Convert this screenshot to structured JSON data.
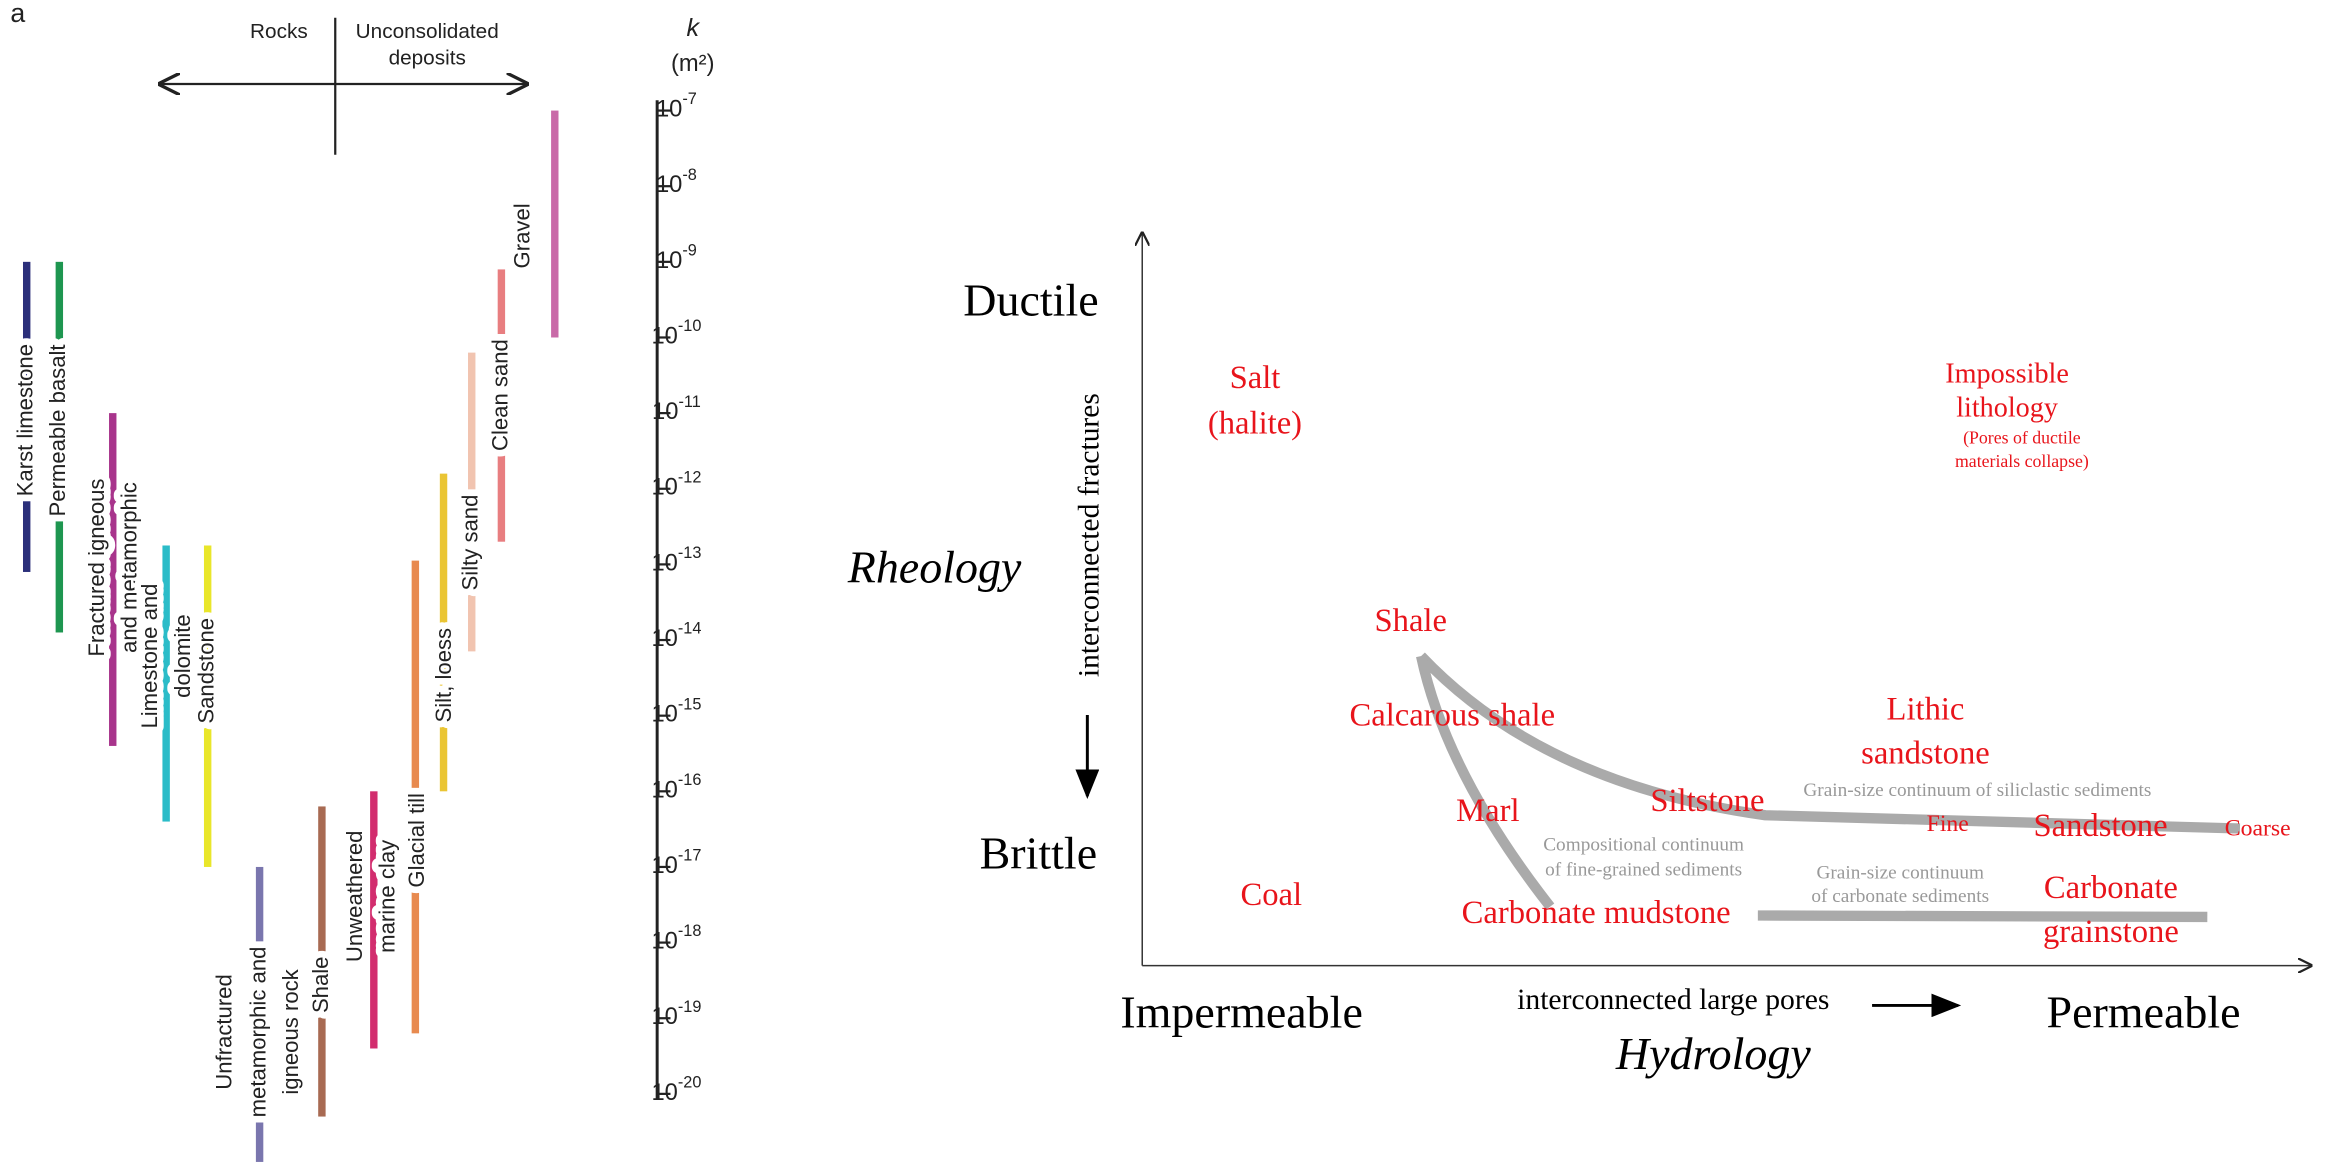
{
  "left": {
    "panel_label": "a",
    "rocks": "Rocks",
    "unconsolidated": [
      "Unconsolidated",
      "deposits"
    ],
    "axis_symbol": "k",
    "axis_unit": "(m²)",
    "tick_base": "10",
    "ticks": [
      -7,
      -8,
      -9,
      -10,
      -11,
      -12,
      -13,
      -14,
      -15,
      -16,
      -17,
      -18,
      -19,
      -20
    ],
    "ylim": [
      -7,
      -20
    ],
    "ranges": [
      {
        "label": [
          "Karst limestone"
        ],
        "high": -9,
        "low": -13.1,
        "color": "#2b2f7a"
      },
      {
        "label": [
          "Permeable basalt"
        ],
        "high": -9,
        "low": -13.9,
        "color": "#1e9650"
      },
      {
        "label": [
          "Fractured igneous",
          "and metamorphic"
        ],
        "high": -11,
        "low": -15.4,
        "color": "#a8348c"
      },
      {
        "label": [
          "Limestone and",
          "dolomite"
        ],
        "high": -12.75,
        "low": -16.4,
        "color": "#2bbcc8"
      },
      {
        "label": [
          "Sandstone"
        ],
        "high": -12.75,
        "low": -17,
        "color": "#e9e62a"
      },
      {
        "label": [
          "Unfractured",
          "metamorphic and",
          "igneous rock"
        ],
        "high": -17,
        "low": -20.9,
        "color": "#7a76ae"
      },
      {
        "label": [
          "Shale"
        ],
        "high": -16.2,
        "low": -20.3,
        "color": "#a86a52"
      },
      {
        "label": [
          "Unweathered",
          "marine clay"
        ],
        "high": -16,
        "low": -19.4,
        "color": "#d22d6e"
      },
      {
        "label": [
          "Glacial till"
        ],
        "high": -12.95,
        "low": -19.2,
        "color": "#e88a4f"
      },
      {
        "label": [
          "Silt, loess"
        ],
        "high": -10.2,
        "low": -14.15,
        "color": "#f1c4b0"
      },
      {
        "label": [
          "Silty sand"
        ],
        "high": -11.8,
        "low": -16,
        "color": "#eac534"
      },
      {
        "label": [
          "Clean sand"
        ],
        "high": -9.1,
        "low": -12.7,
        "color": "#e87e80"
      },
      {
        "label": [
          "Gravel"
        ],
        "high": -7,
        "low": -10,
        "color": "#c96aa8"
      }
    ]
  },
  "right": {
    "ductile": "Ductile",
    "brittle": "Brittle",
    "rheology": "Rheology",
    "fractures": "interconnected fractures",
    "impermeable": "Impermeable",
    "permeable": "Permeable",
    "hydrology": "Hydrology",
    "pores": "interconnected large pores",
    "salt": [
      "Salt",
      "(halite)"
    ],
    "impossible": [
      "Impossible",
      "lithology"
    ],
    "impossible_note": [
      "(Pores of ductile",
      "materials collapse)"
    ],
    "shale": "Shale",
    "calc_shale": "Calcarous shale",
    "marl": "Marl",
    "siltstone": "Siltstone",
    "lithic": [
      "Lithic",
      "sandstone"
    ],
    "fine": "Fine",
    "sandstone": "Sandstone",
    "coarse": "Coarse",
    "coal": "Coal",
    "carb_mud": "Carbonate mudstone",
    "carb_grain": [
      "Carbonate",
      "grainstone"
    ],
    "note_silic": "Grain-size continuum of siliclastic sediments",
    "note_comp": [
      "Compositional continuum",
      "of fine-grained sediments"
    ],
    "note_carb": [
      "Grain-size continuum",
      "of carbonate sediments"
    ]
  }
}
